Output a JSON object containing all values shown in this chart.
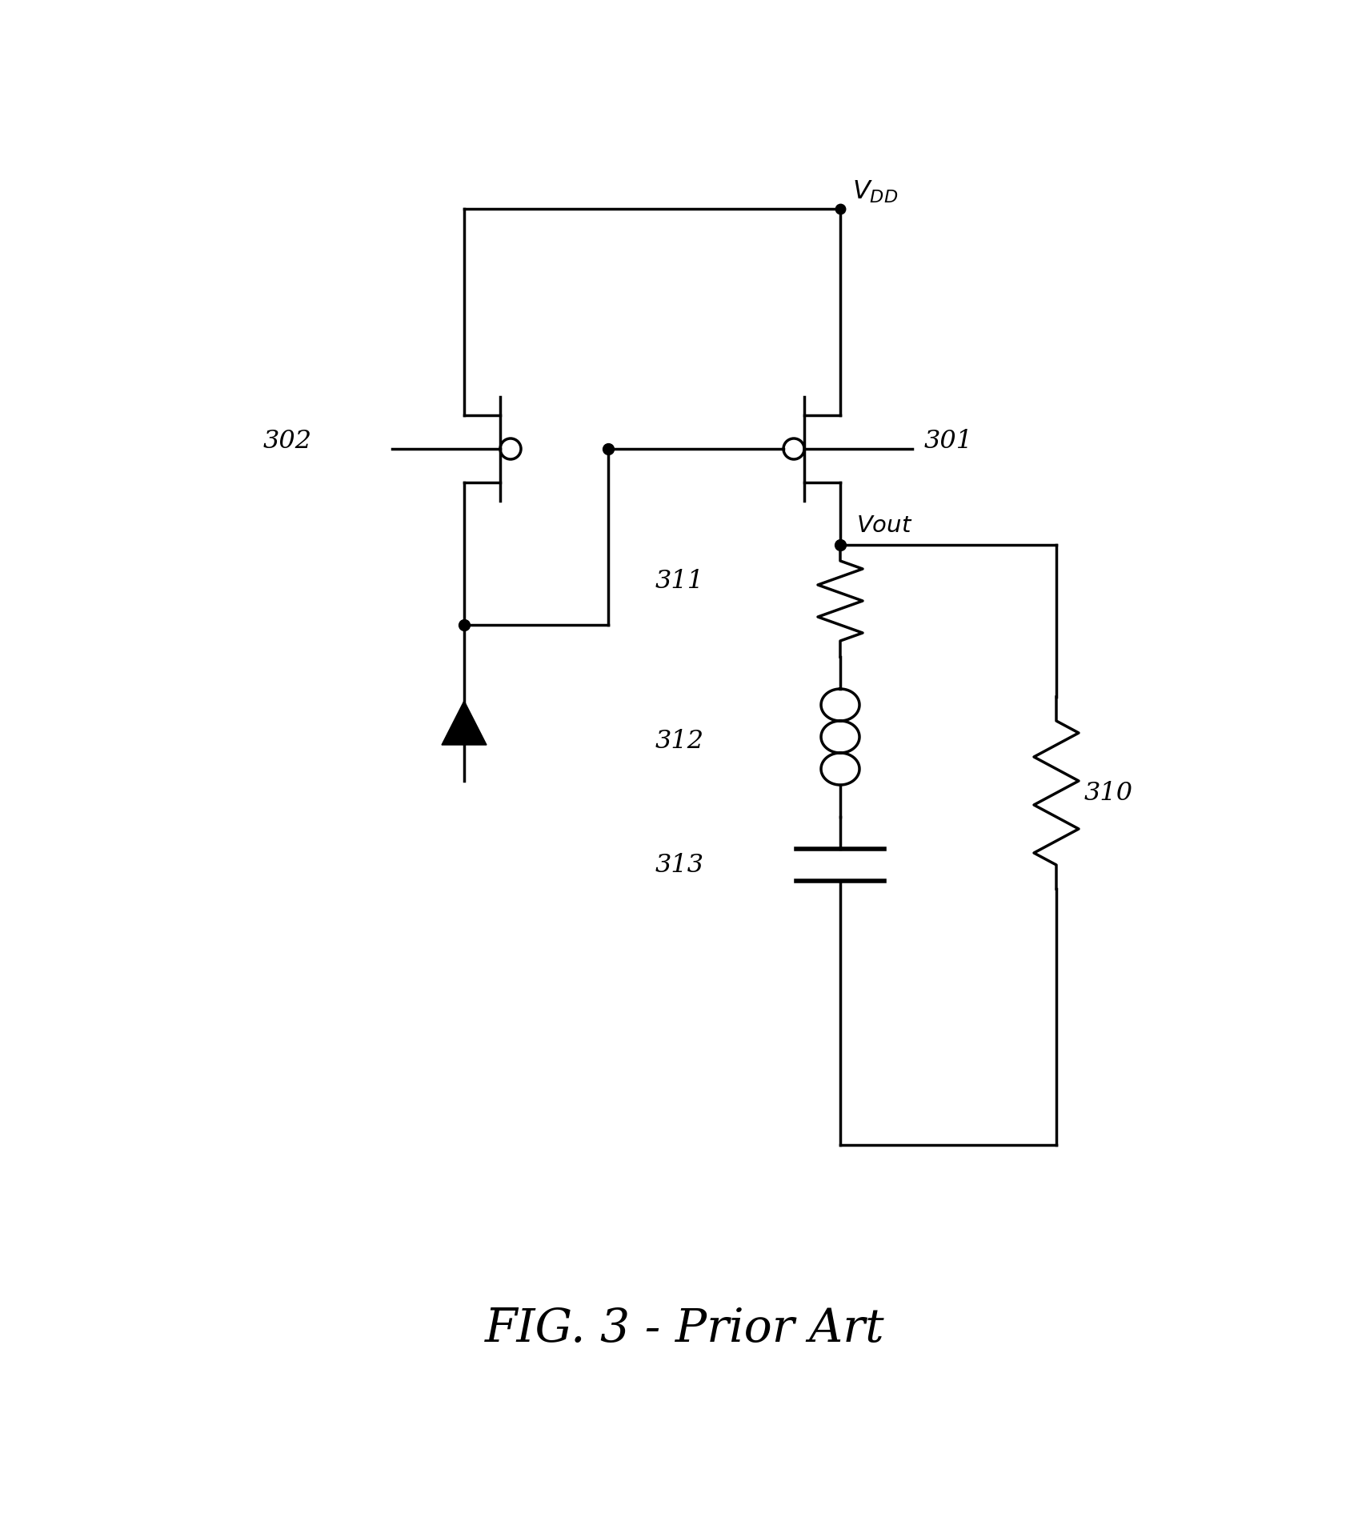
{
  "title": "FIG. 3 - Prior Art",
  "title_fontsize": 42,
  "background_color": "#ffffff",
  "line_color": "#000000",
  "line_width": 2.5,
  "fig_width": 17.12,
  "fig_height": 19.11
}
